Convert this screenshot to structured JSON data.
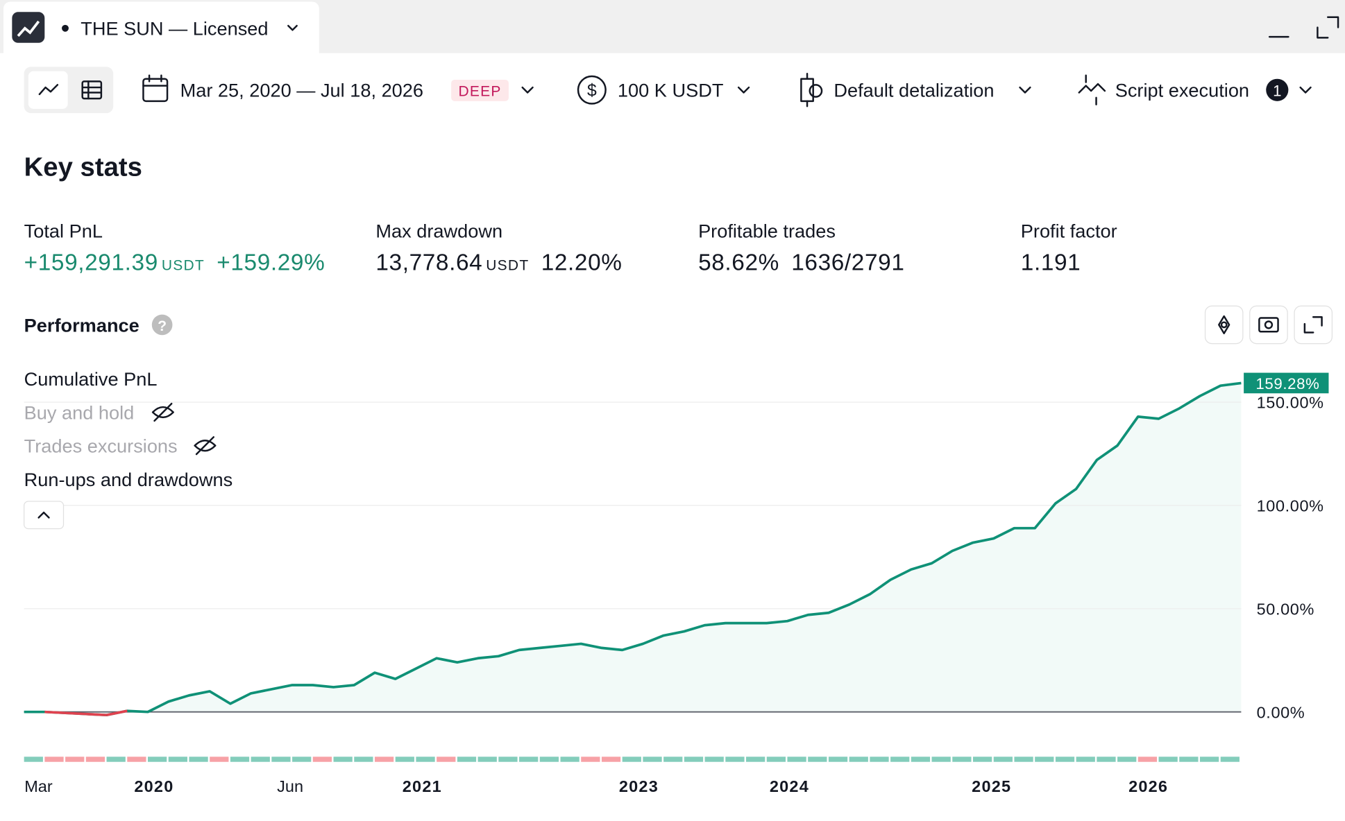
{
  "header": {
    "tab_title": "THE SUN — Licensed"
  },
  "toolbar": {
    "date_range": "Mar 25, 2020 — Jul 18, 2026",
    "badge": "DEEP",
    "capital": "100 K USDT",
    "detalization": "Default detalization",
    "execution": "Script execution",
    "execution_count": "1"
  },
  "section_title": "Key stats",
  "stats": [
    {
      "label": "Total PnL",
      "value": "+159,291.39",
      "unit": "USDT",
      "extra": "+159.29%"
    },
    {
      "label": "Max drawdown",
      "value": "13,778.64",
      "unit": "USDT",
      "extra": "12.20%"
    },
    {
      "label": "Profitable trades",
      "value": "58.62%",
      "extra": "1636/2791"
    },
    {
      "label": "Profit factor",
      "value": "1.191"
    }
  ],
  "performance_title": "Performance",
  "legend": [
    "Cumulative PnL",
    "Buy and hold",
    "Trades excursions",
    "Run-ups and drawdowns"
  ],
  "chart_data": {
    "type": "line",
    "values": [
      0,
      0,
      -0.5,
      -1,
      -1.5,
      0.5,
      0,
      5,
      8,
      10,
      4,
      9,
      11,
      13,
      13,
      12,
      13,
      19,
      16,
      21,
      26,
      24,
      26,
      27,
      30,
      31,
      32,
      33,
      31,
      30,
      33,
      37,
      39,
      42,
      43,
      43,
      43,
      44,
      47,
      48,
      52,
      57,
      64,
      69,
      72,
      78,
      82,
      84,
      89,
      89,
      101,
      108,
      122,
      129,
      143,
      142,
      147,
      153,
      158,
      159.28
    ],
    "last_value_label": "159.28%",
    "color": "#0f9177",
    "negative_color": "#e0424f",
    "area_color": "#f2faf8",
    "up_color": "#83cdbb",
    "down_color": "#f7a1a6",
    "xlim": [
      0,
      59
    ],
    "xticks": [
      {
        "value": 0.7,
        "label": "Mar"
      },
      {
        "value": 6.3,
        "label": "2020"
      },
      {
        "value": 12.9,
        "label": "Jun"
      },
      {
        "value": 19.3,
        "label": "2021"
      },
      {
        "value": 29.8,
        "label": "2023"
      },
      {
        "value": 37.1,
        "label": "2024"
      },
      {
        "value": 46.9,
        "label": "2025"
      },
      {
        "value": 54.5,
        "label": "2026"
      }
    ],
    "ylim": [
      -8,
      163
    ],
    "yticks": [
      {
        "value": 0,
        "label": "0.00%"
      },
      {
        "value": 50,
        "label": "50.00%"
      },
      {
        "value": 100,
        "label": "100.00%"
      },
      {
        "value": 150,
        "label": "150.00%"
      }
    ],
    "grid": true
  }
}
